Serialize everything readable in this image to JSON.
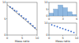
{
  "chart_data": [
    {
      "type": "scatter",
      "x_label": "Mass ratio",
      "xlim": [
        0,
        10
      ],
      "ylim": [
        0,
        10
      ],
      "xticks": [
        0,
        5,
        10
      ],
      "yticks": [
        0,
        5,
        10
      ],
      "series": [
        {
          "type": "scatter",
          "color": "#3366cc",
          "marker": "circle",
          "x": [
            1,
            1.8,
            2.5,
            3.2,
            4,
            4.8,
            5.5,
            6.3,
            7,
            7.8,
            8.6,
            9.3
          ],
          "values": [
            8.6,
            8.2,
            7.5,
            7.3,
            6.4,
            5.9,
            5.2,
            4.9,
            4.1,
            3.5,
            2.8,
            2.2
          ]
        },
        {
          "type": "line",
          "color": "#555555",
          "line_style": "solid",
          "x": [
            0,
            10
          ],
          "values": [
            9.3,
            1.5
          ]
        }
      ]
    },
    {
      "type": "histogram",
      "xlim": [
        0,
        6
      ],
      "ylim": [
        0,
        10
      ],
      "xticks": [
        0,
        3,
        6
      ],
      "yticks": [
        0,
        5,
        10
      ],
      "color": "#8fb8e0",
      "bins": [
        0,
        1,
        2,
        3,
        4,
        5,
        6
      ],
      "values": [
        2,
        5,
        8,
        6,
        3,
        1
      ]
    },
    {
      "type": "scatter",
      "x_label": "Mass ratio",
      "xlim": [
        0,
        10
      ],
      "ylim": [
        0,
        10
      ],
      "xticks": [
        0,
        5,
        10
      ],
      "yticks": [
        0,
        10
      ],
      "series": [
        {
          "type": "scatter",
          "color": "#3366cc",
          "marker": "circle",
          "x": [
            1,
            2,
            3,
            4,
            5,
            6,
            7,
            8,
            9
          ],
          "values": [
            8.5,
            7.8,
            7,
            6.1,
            5.4,
            4.5,
            3.8,
            3,
            2.1
          ]
        }
      ]
    }
  ]
}
